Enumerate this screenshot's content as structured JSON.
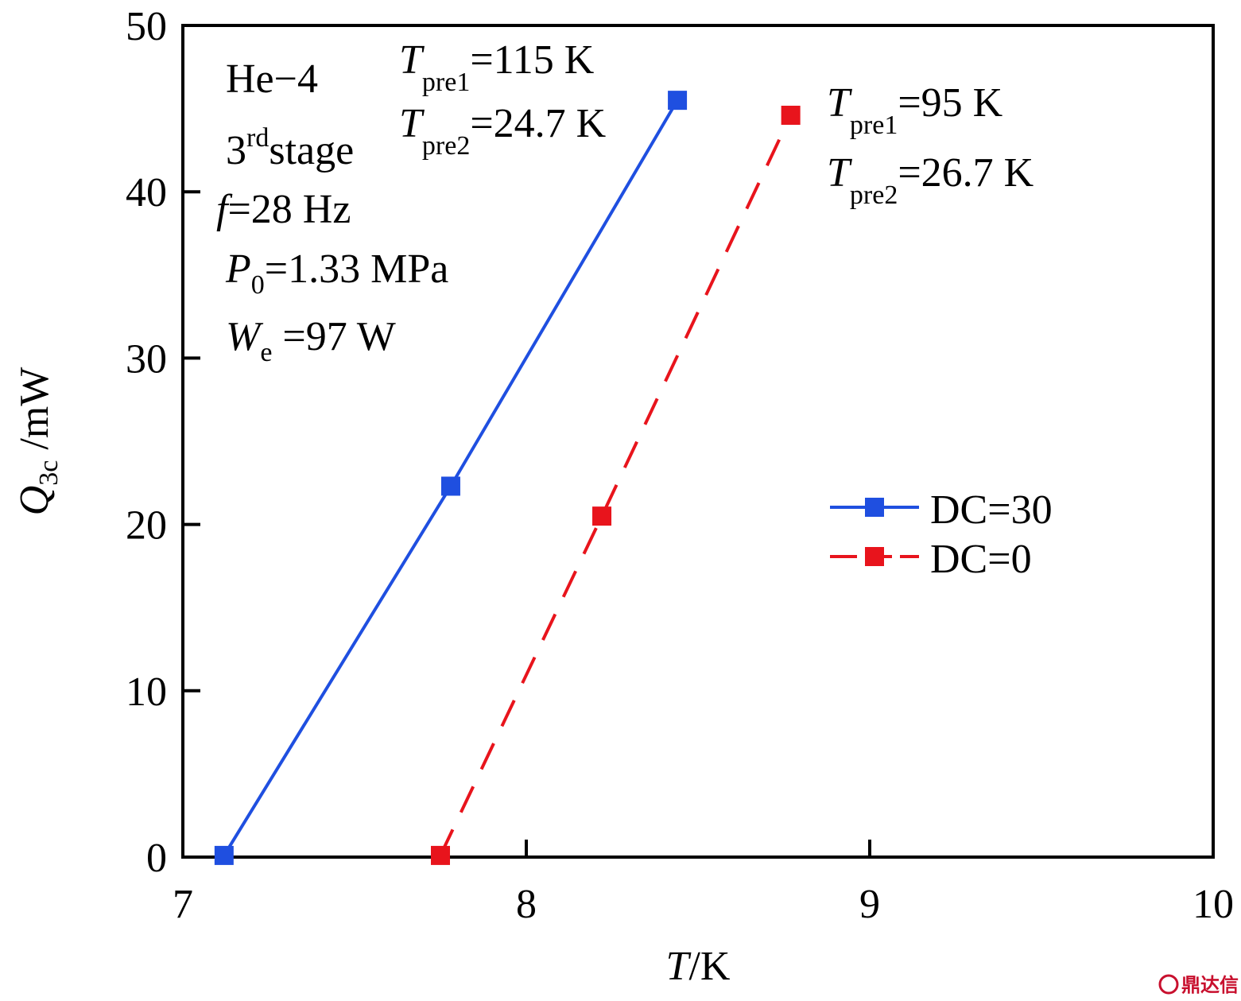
{
  "chart_data": {
    "type": "line",
    "xlabel": "T/K",
    "ylabel": "Q3c /mW",
    "xlim": [
      7,
      10
    ],
    "ylim": [
      0,
      50
    ],
    "xticks": [
      7,
      8,
      9,
      10
    ],
    "yticks": [
      0,
      10,
      20,
      30,
      40,
      50
    ],
    "grid": false,
    "legend_position": "right",
    "series": [
      {
        "name": "DC=30",
        "color": "#1f4fe0",
        "line_style": "solid",
        "marker": "square",
        "x": [
          7.12,
          7.78,
          8.44
        ],
        "y": [
          0.1,
          22.3,
          45.5
        ]
      },
      {
        "name": "DC=0",
        "color": "#e8141c",
        "line_style": "dashed",
        "marker": "square",
        "x": [
          7.75,
          8.22,
          8.77
        ],
        "y": [
          0.1,
          20.5,
          44.6
        ]
      }
    ],
    "annotations": {
      "conditions": [
        "He-4",
        "3rdstage",
        "f=28 Hz",
        "P0=1.33 MPa",
        "We =97 W"
      ],
      "dc30_temps": [
        "Tpre1=115 K",
        "Tpre2=24.7 K"
      ],
      "dc0_temps": [
        "Tpre1=95 K",
        "Tpre2=26.7 K"
      ]
    }
  },
  "text": {
    "x_title_T": "T",
    "x_title_unit": "/K",
    "y_title_Q": "Q",
    "y_title_sub": "3c",
    "y_title_unit": " /mW",
    "cond_gas": "He−4",
    "cond_stage_num": "3",
    "cond_stage_sup": "rd",
    "cond_stage_word": "stage",
    "cond_f_sym": "f",
    "cond_f_val": "=28 Hz",
    "cond_p_sym": "P",
    "cond_p_sub": "0",
    "cond_p_val": "=1.33 MPa",
    "cond_w_sym": "W",
    "cond_w_sub": "e",
    "cond_w_val": " =97 W",
    "t_sym": "T",
    "sub_pre1": "pre1",
    "sub_pre2": "pre2",
    "dc30_pre1_val": "=115 K",
    "dc30_pre2_val": "=24.7 K",
    "dc0_pre1_val": "=95 K",
    "dc0_pre2_val": "=26.7 K",
    "watermark": "鼎达信"
  }
}
